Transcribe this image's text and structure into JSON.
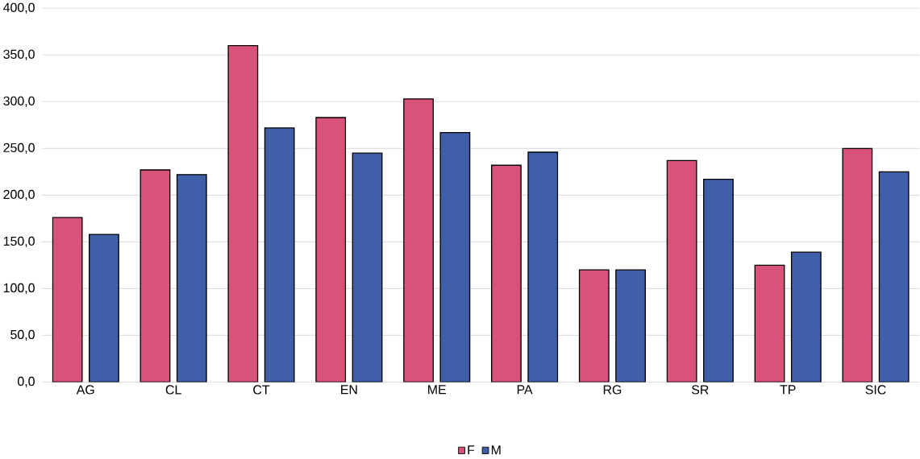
{
  "chart_data": {
    "type": "bar",
    "categories": [
      "AG",
      "CL",
      "CT",
      "EN",
      "ME",
      "PA",
      "RG",
      "SR",
      "TP",
      "SIC"
    ],
    "series": [
      {
        "name": "F",
        "color": "#d9527a",
        "values": [
          176,
          227,
          360,
          283,
          303,
          232,
          120,
          237,
          125,
          250
        ]
      },
      {
        "name": "M",
        "color": "#3f5fa8",
        "values": [
          158,
          222,
          272,
          245,
          267,
          246,
          120,
          217,
          139,
          225
        ]
      }
    ],
    "ylim": [
      0,
      400
    ],
    "yticks": [
      {
        "value": 0,
        "label": "0,0"
      },
      {
        "value": 50,
        "label": "50,0"
      },
      {
        "value": 100,
        "label": "100,0"
      },
      {
        "value": 150,
        "label": "150,0"
      },
      {
        "value": 200,
        "label": "200,0"
      },
      {
        "value": 250,
        "label": "250,0"
      },
      {
        "value": 300,
        "label": "300,0"
      },
      {
        "value": 350,
        "label": "350,0"
      },
      {
        "value": 400,
        "label": "400,0"
      }
    ],
    "grid": "y",
    "legend": "bottom"
  }
}
